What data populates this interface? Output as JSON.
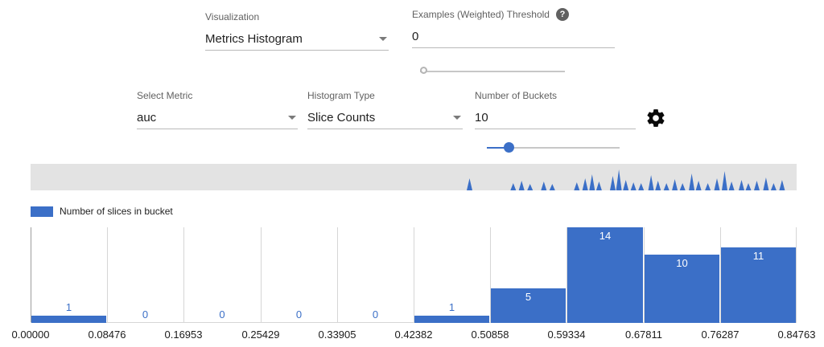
{
  "controls": {
    "visualization": {
      "label": "Visualization",
      "value": "Metrics Histogram"
    },
    "threshold": {
      "label": "Examples (Weighted) Threshold",
      "value": "0",
      "help_icon": "?"
    },
    "select_metric": {
      "label": "Select Metric",
      "value": "auc"
    },
    "histogram_type": {
      "label": "Histogram Type",
      "value": "Slice Counts"
    },
    "num_buckets": {
      "label": "Number of Buckets",
      "value": "10"
    }
  },
  "legend": {
    "label": "Number of slices in bucket"
  },
  "chart_data": {
    "type": "bar",
    "series_label": "Number of slices in bucket",
    "categories": [
      "0.00000",
      "0.08476",
      "0.16953",
      "0.25429",
      "0.33905",
      "0.42382",
      "0.50858",
      "0.59334",
      "0.67811",
      "0.76287",
      "0.84763"
    ],
    "values": [
      1,
      0,
      0,
      0,
      0,
      1,
      5,
      14,
      10,
      11
    ],
    "ylim": [
      0,
      14
    ],
    "bar_color": "#3b6fc7",
    "grid": "vertical",
    "legend_position": "top-left"
  },
  "overview": {
    "spikes": [
      [
        0.573,
        15
      ],
      [
        0.63,
        9
      ],
      [
        0.641,
        12
      ],
      [
        0.652,
        8
      ],
      [
        0.67,
        11
      ],
      [
        0.681,
        8
      ],
      [
        0.713,
        10
      ],
      [
        0.724,
        15
      ],
      [
        0.733,
        20
      ],
      [
        0.742,
        11
      ],
      [
        0.76,
        18
      ],
      [
        0.768,
        26
      ],
      [
        0.777,
        13
      ],
      [
        0.787,
        10
      ],
      [
        0.797,
        9
      ],
      [
        0.81,
        19
      ],
      [
        0.819,
        12
      ],
      [
        0.83,
        9
      ],
      [
        0.841,
        14
      ],
      [
        0.851,
        9
      ],
      [
        0.863,
        21
      ],
      [
        0.872,
        12
      ],
      [
        0.884,
        9
      ],
      [
        0.896,
        15
      ],
      [
        0.906,
        24
      ],
      [
        0.915,
        11
      ],
      [
        0.928,
        13
      ],
      [
        0.937,
        9
      ],
      [
        0.948,
        12
      ],
      [
        0.96,
        16
      ],
      [
        0.97,
        9
      ],
      [
        0.981,
        13
      ]
    ]
  },
  "colors": {
    "accent_blue": "#3b6fc7",
    "overview_bg": "#e3e3e3"
  }
}
